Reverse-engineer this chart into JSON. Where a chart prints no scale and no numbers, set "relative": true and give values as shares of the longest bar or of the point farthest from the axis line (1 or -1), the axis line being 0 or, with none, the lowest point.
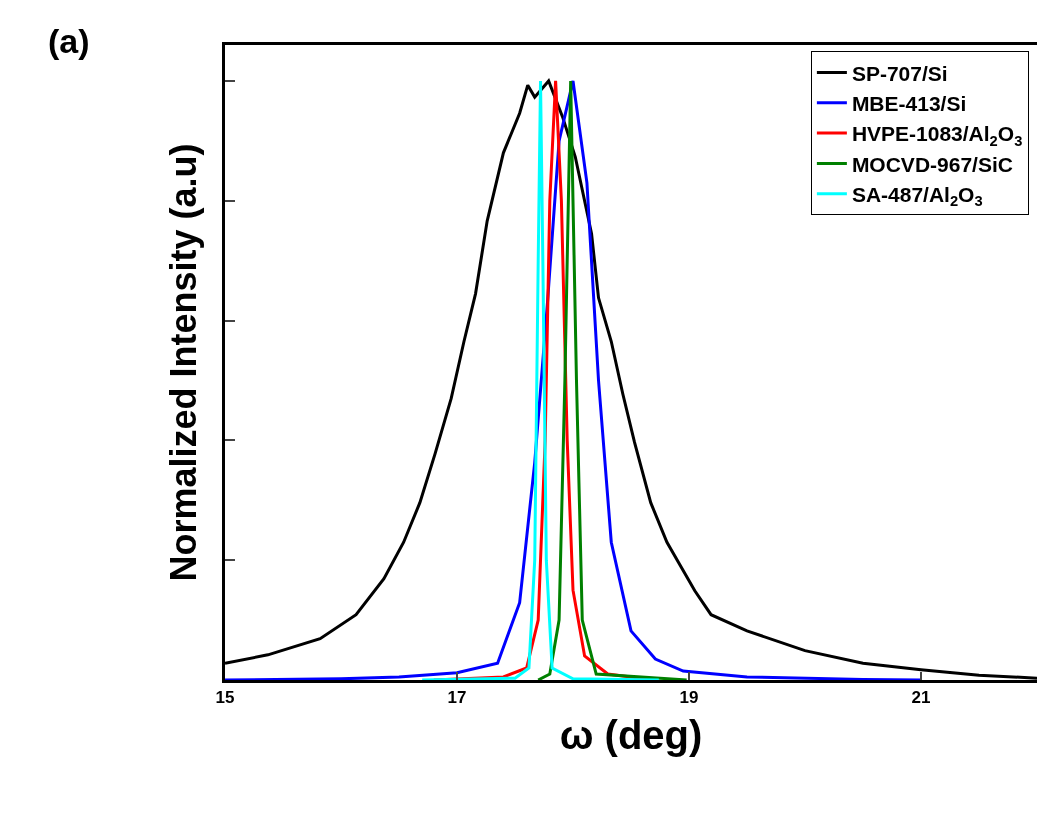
{
  "chart_data": {
    "type": "line",
    "relative": true,
    "xlabel": "ω (deg)",
    "ylabel": "Normalized Intensity (a.u)",
    "annotations": [
      "(a)"
    ],
    "xlim": [
      15,
      22
    ],
    "xticks": [
      15,
      17,
      19,
      21
    ],
    "tick_labels": "x",
    "legend": "top right",
    "line_style": "solid",
    "marker": "none",
    "series": [
      {
        "name": "SP-707/Si",
        "color": "#000000",
        "x": [
          15.0,
          15.37,
          15.82,
          16.13,
          16.37,
          16.54,
          16.68,
          16.81,
          16.95,
          17.06,
          17.16,
          17.26,
          17.4,
          17.54,
          17.61,
          17.67,
          17.79,
          17.91,
          18.02,
          18.16,
          18.22,
          18.33,
          18.43,
          18.53,
          18.67,
          18.81,
          18.91,
          19.05,
          19.19,
          19.5,
          20.0,
          20.5,
          21.0,
          21.5,
          22.0
        ],
        "values": [
          0.028,
          0.042,
          0.069,
          0.109,
          0.169,
          0.23,
          0.296,
          0.377,
          0.47,
          0.565,
          0.645,
          0.766,
          0.88,
          0.946,
          0.993,
          0.973,
          1.0,
          0.94,
          0.873,
          0.745,
          0.638,
          0.565,
          0.477,
          0.397,
          0.296,
          0.23,
          0.196,
          0.149,
          0.109,
          0.082,
          0.049,
          0.028,
          0.017,
          0.008,
          0.003
        ]
      },
      {
        "name": "MBE-413/Si",
        "color": "#0000ff",
        "x": [
          15.0,
          16.0,
          16.5,
          17.0,
          17.35,
          17.54,
          17.67,
          17.78,
          17.88,
          18.0,
          18.12,
          18.22,
          18.33,
          18.5,
          18.71,
          18.95,
          19.5,
          20.5,
          21.0
        ],
        "values": [
          0.0,
          0.002,
          0.005,
          0.012,
          0.028,
          0.129,
          0.363,
          0.63,
          0.9,
          1.0,
          0.83,
          0.5,
          0.23,
          0.082,
          0.035,
          0.015,
          0.005,
          0.001,
          0.0
        ]
      },
      {
        "name": "HVPE-1083/Al$_{2}$O$_{3}$",
        "color": "#ff0000",
        "x": [
          16.8,
          17.4,
          17.6,
          17.7,
          17.76,
          17.8,
          17.85,
          17.9,
          17.95,
          18.0,
          18.1,
          18.3,
          18.7
        ],
        "values": [
          0.0,
          0.005,
          0.02,
          0.1,
          0.4,
          0.8,
          1.0,
          0.8,
          0.4,
          0.15,
          0.04,
          0.01,
          0.0
        ]
      },
      {
        "name": "MOCVD-967/SiC",
        "color": "#008000",
        "x": [
          17.7,
          17.8,
          17.88,
          17.93,
          17.98,
          18.03,
          18.08,
          18.2,
          18.98
        ],
        "values": [
          0.0,
          0.01,
          0.1,
          0.5,
          1.0,
          0.5,
          0.1,
          0.01,
          0.0
        ]
      },
      {
        "name": "SA-487/Al$_{2}$O$_{3}$",
        "color": "#00ffff",
        "x": [
          16.7,
          17.5,
          17.62,
          17.67,
          17.7,
          17.72,
          17.74,
          17.77,
          17.82,
          18.0,
          18.74
        ],
        "values": [
          0.0,
          0.003,
          0.02,
          0.2,
          0.7,
          1.0,
          0.7,
          0.2,
          0.02,
          0.002,
          0.0
        ]
      }
    ]
  }
}
